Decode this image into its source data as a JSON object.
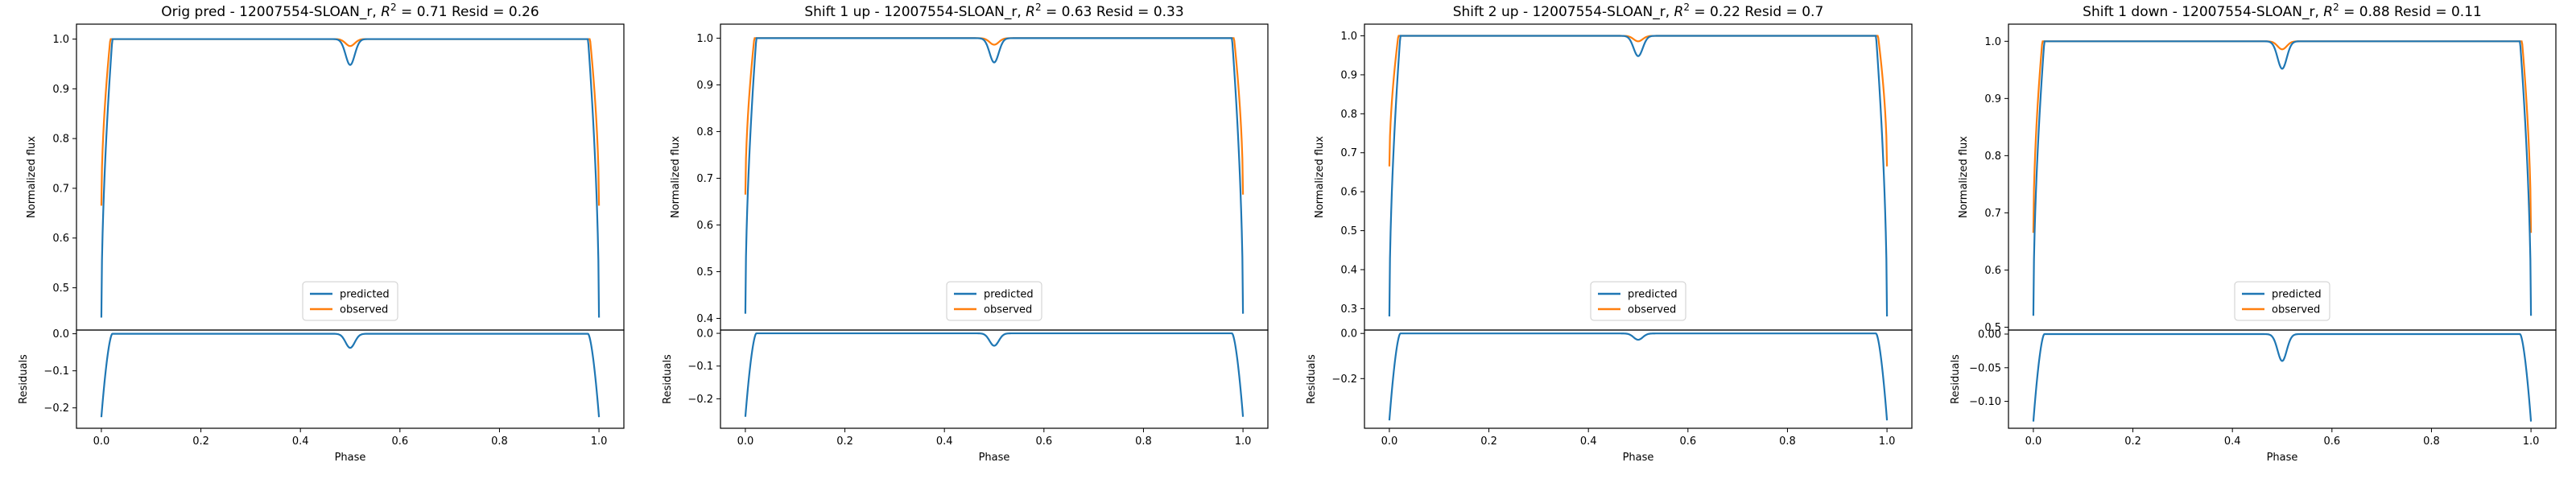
{
  "chart_data": [
    {
      "type": "line",
      "title": "Orig pred - 12007554-SLOAN_r, $R^2 = 0.71$ Resid = 0.26",
      "xlabel": "Phase",
      "ylabel": "Normalized flux",
      "ylabel_resid": "Residuals",
      "xlim": [
        -0.05,
        1.05
      ],
      "ylim": [
        0.415,
        1.03
      ],
      "ylim_resid": [
        -0.255,
        0.01
      ],
      "xticks": [
        "0.0",
        "0.2",
        "0.4",
        "0.6",
        "0.8",
        "1.0"
      ],
      "yticks": [
        "0.5",
        "0.6",
        "0.7",
        "0.8",
        "0.9",
        "1.0"
      ],
      "yticks_resid": [
        "0.0",
        "−0.1",
        "−0.2"
      ],
      "legend": [
        "predicted",
        "observed"
      ],
      "legend_position": "lower center",
      "series": [
        {
          "name": "predicted",
          "color": "#1f77b4",
          "edge_min": 0.44,
          "dip_min": 0.948
        },
        {
          "name": "observed",
          "color": "#ff7f0e",
          "edge_min": 0.665,
          "dip_min": 0.986
        }
      ],
      "residuals": {
        "edge_min": -0.225,
        "dip_min": -0.038
      }
    },
    {
      "type": "line",
      "title": "Shift 1 up - 12007554-SLOAN_r, $R^2 = 0.63$ Resid = 0.33",
      "xlabel": "Phase",
      "ylabel": "Normalized flux",
      "ylabel_resid": "Residuals",
      "xlim": [
        -0.05,
        1.05
      ],
      "ylim": [
        0.375,
        1.03
      ],
      "ylim_resid": [
        -0.29,
        0.01
      ],
      "xticks": [
        "0.0",
        "0.2",
        "0.4",
        "0.6",
        "0.8",
        "1.0"
      ],
      "yticks": [
        "0.4",
        "0.5",
        "0.6",
        "0.7",
        "0.8",
        "0.9",
        "1.0"
      ],
      "yticks_resid": [
        "0.0",
        "−0.1",
        "−0.2"
      ],
      "legend": [
        "predicted",
        "observed"
      ],
      "legend_position": "lower center",
      "series": [
        {
          "name": "predicted",
          "color": "#1f77b4",
          "edge_min": 0.41,
          "dip_min": 0.948
        },
        {
          "name": "observed",
          "color": "#ff7f0e",
          "edge_min": 0.665,
          "dip_min": 0.986
        }
      ],
      "residuals": {
        "edge_min": -0.255,
        "dip_min": -0.038
      }
    },
    {
      "type": "line",
      "title": "Shift 2 up - 12007554-SLOAN_r, $R^2 = 0.22$ Resid = 0.7",
      "xlabel": "Phase",
      "ylabel": "Normalized flux",
      "ylabel_resid": "Residuals",
      "xlim": [
        -0.05,
        1.05
      ],
      "ylim": [
        0.245,
        1.03
      ],
      "ylim_resid": [
        -0.42,
        0.015
      ],
      "xticks": [
        "0.0",
        "0.2",
        "0.4",
        "0.6",
        "0.8",
        "1.0"
      ],
      "yticks": [
        "0.3",
        "0.4",
        "0.5",
        "0.6",
        "0.7",
        "0.8",
        "0.9",
        "1.0"
      ],
      "yticks_resid": [
        "0.0",
        "−0.2"
      ],
      "legend": [
        "predicted",
        "observed"
      ],
      "legend_position": "lower center",
      "series": [
        {
          "name": "predicted",
          "color": "#1f77b4",
          "edge_min": 0.28,
          "dip_min": 0.948
        },
        {
          "name": "observed",
          "color": "#ff7f0e",
          "edge_min": 0.665,
          "dip_min": 0.986
        }
      ],
      "residuals": {
        "edge_min": -0.385,
        "dip_min": -0.028
      }
    },
    {
      "type": "line",
      "title": "Shift 1 down - 12007554-SLOAN_r, $R^2 = 0.88$ Resid = 0.11",
      "xlabel": "Phase",
      "ylabel": "Normalized flux",
      "ylabel_resid": "Residuals",
      "xlim": [
        -0.05,
        1.05
      ],
      "ylim": [
        0.495,
        1.03
      ],
      "ylim_resid": [
        -0.14,
        0.006
      ],
      "xticks": [
        "0.0",
        "0.2",
        "0.4",
        "0.6",
        "0.8",
        "1.0"
      ],
      "yticks": [
        "0.5",
        "0.6",
        "0.7",
        "0.8",
        "0.9",
        "1.0"
      ],
      "yticks_resid": [
        "0.00",
        "−0.05",
        "−0.10"
      ],
      "legend": [
        "predicted",
        "observed"
      ],
      "legend_position": "lower center",
      "series": [
        {
          "name": "predicted",
          "color": "#1f77b4",
          "edge_min": 0.52,
          "dip_min": 0.952
        },
        {
          "name": "observed",
          "color": "#ff7f0e",
          "edge_min": 0.665,
          "dip_min": 0.986
        }
      ],
      "residuals": {
        "edge_min": -0.13,
        "dip_min": -0.04
      }
    }
  ]
}
